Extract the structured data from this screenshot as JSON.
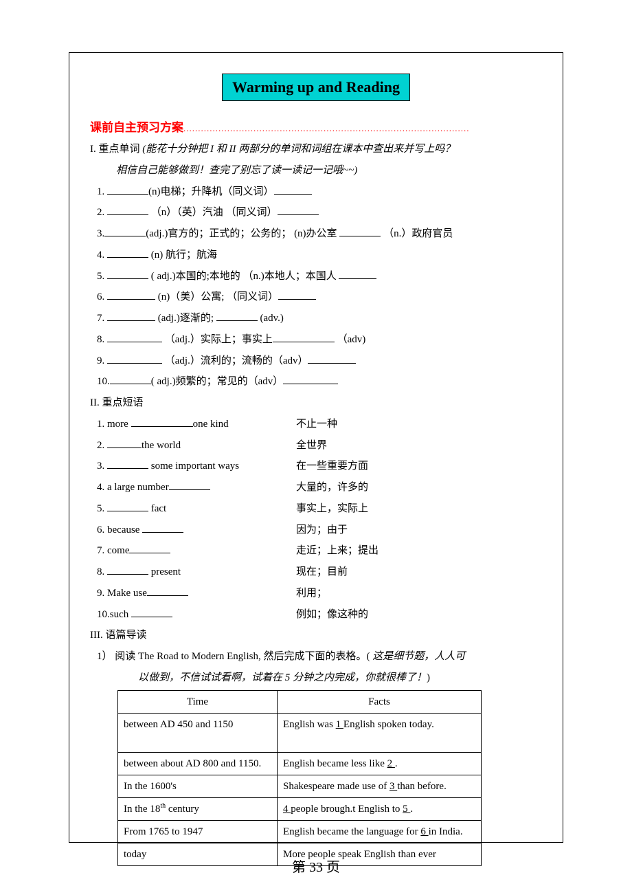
{
  "banner": "Warming up and Reading",
  "preview_heading": "课前自主预习方案",
  "dots": "..................................................................................................",
  "section1": {
    "title": "I. 重点单词",
    "hint1": "(能花十分钟把 I 和 II 两部分的单词和词组在课本中查出来并写上吗？",
    "hint2": "相信自己能够做到！查完了别忘了读一读记一记哦~~)",
    "items": {
      "i1a": "(n)电梯；升降机（同义词）",
      "i2a": "（n）（英）汽油 （同义词）",
      "i3a": "(adj.)官方的；正式的；公务的；  (n)办公室",
      "i3b": "（n.）政府官员",
      "i4a": "(n) 航行；航海",
      "i5a": "( adj.)本国的;本地的    （n.)本地人；本国人",
      "i6a": "(n)（美）公寓;  （同义词）",
      "i7a": "(adj.)逐渐的;",
      "i7b": "(adv.)",
      "i8a": "（adj.）实际上；事实上",
      "i8b": "（adv)",
      "i9a": "（adj.）流利的；流畅的（adv）",
      "i10a": "( adj.)频繁的；常见的（adv）"
    }
  },
  "section2": {
    "title": "II. 重点短语",
    "rows": [
      {
        "l": "1. more ",
        "blank_w": "w90",
        "l2": "one kind",
        "r": "不止一种"
      },
      {
        "l": "2. ",
        "blank_w": "w50",
        "l2": "the world",
        "r": "全世界"
      },
      {
        "l": "3. ",
        "blank_w": "w60",
        "l2": " some important ways",
        "r": "在一些重要方面"
      },
      {
        "l": "4. a   large number",
        "blank_w": "w60",
        "l2": "",
        "r": "大量的，许多的"
      },
      {
        "l": "5.   ",
        "blank_w": "w60",
        "l2": " fact",
        "r": "事实上，实际上"
      },
      {
        "l": "6. because ",
        "blank_w": "w60",
        "l2": "",
        "r": "因为；由于"
      },
      {
        "l": "7. come",
        "blank_w": "w60",
        "l2": "",
        "r": "走近；上来；提出"
      },
      {
        "l": "8. ",
        "blank_w": "w60",
        "l2": " present",
        "r": "现在；目前"
      },
      {
        "l": "9. Make use",
        "blank_w": "w60",
        "l2": "",
        "r": "利用；"
      },
      {
        "l": "10.such ",
        "blank_w": "w60",
        "l2": "",
        "r": "例如；像这种的"
      }
    ]
  },
  "section3": {
    "title": "III. 语篇导读",
    "intro1": "1）  阅读 The Road to Modern English,  然后完成下面的表格。( ",
    "intro_italic": "这是细节题，人人可",
    "intro2_italic": "以做到，不信试试看啊，试着在 5 分钟之内完成，你就很棒了！",
    "intro2_close": ")",
    "table": {
      "h1": "Time",
      "h2": "Facts",
      "rows": [
        {
          "t": "between AD 450 and 1150",
          "f": "English was ",
          "u": "  1  ",
          "f2": " English spoken today.",
          "extra_line": true
        },
        {
          "t": "between about AD 800 and 1150.",
          "f": "English became less like ",
          "u": "  2  ",
          "f2": "."
        },
        {
          "t": "In the 1600's",
          "f": "Shakespeare made use of ",
          "u": " 3 ",
          "f2": " than before."
        },
        {
          "t": "In the 18",
          "sup": "th",
          "t2": " century",
          "f": "",
          "u": "  4  ",
          "f2": " people brough.t English to ",
          "u2": "  5  ",
          "f3": "."
        },
        {
          "t": "From 1765 to 1947",
          "f": "English became the language for ",
          "u": "  6  ",
          "f2": " in India."
        },
        {
          "t": "today",
          "f": "More people speak English than ever"
        }
      ]
    }
  },
  "footer": "第 33 页"
}
